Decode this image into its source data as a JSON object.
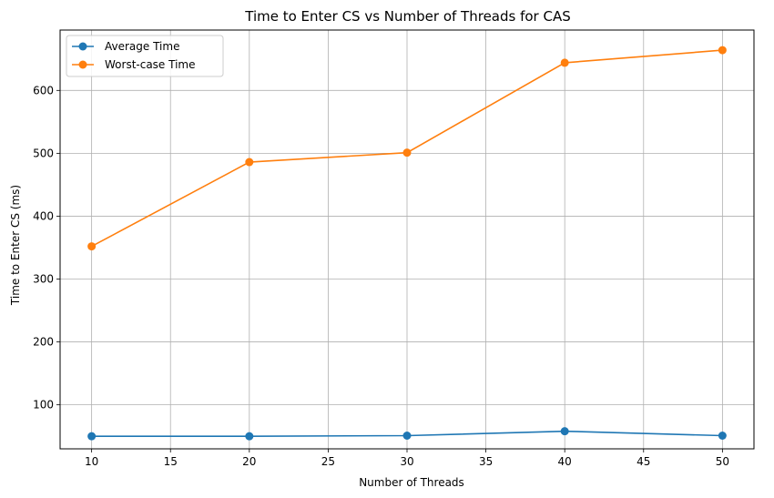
{
  "chart_data": {
    "type": "line",
    "title": "Time to Enter CS vs Number of Threads for CAS",
    "xlabel": "Number of Threads",
    "ylabel": "Time to Enter CS (ms)",
    "x": [
      10,
      20,
      30,
      40,
      50
    ],
    "xlim": [
      8,
      52
    ],
    "ylim": [
      30,
      696
    ],
    "xticks": [
      10,
      15,
      20,
      25,
      30,
      35,
      40,
      45,
      50
    ],
    "yticks": [
      100,
      200,
      300,
      400,
      500,
      600
    ],
    "grid": true,
    "legend_position": "top-left",
    "series": [
      {
        "name": "Average Time",
        "color": "#1f77b4",
        "values": [
          50,
          50,
          51,
          58,
          51
        ]
      },
      {
        "name": "Worst-case Time",
        "color": "#ff7f0e",
        "values": [
          352,
          486,
          501,
          644,
          664
        ]
      }
    ]
  }
}
